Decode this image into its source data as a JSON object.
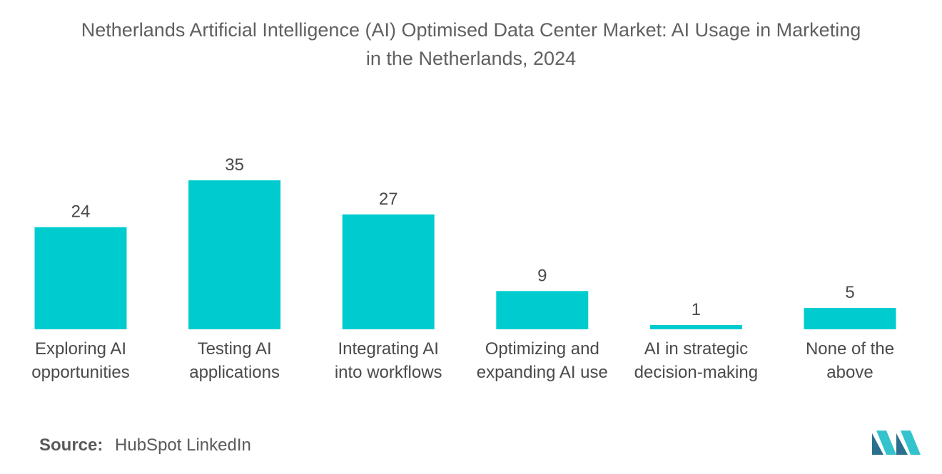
{
  "title_lines": [
    "Netherlands Artificial Intelligence (AI) Optimised Data Center Market: AI Usage in Marketing",
    "in the Netherlands, 2024"
  ],
  "chart_data": {
    "type": "bar",
    "title": "Netherlands Artificial Intelligence (AI) Optimised Data Center Market: AI Usage in Marketing in the Netherlands, 2024",
    "categories": [
      [
        "Exploring AI",
        "opportunities"
      ],
      [
        "Testing AI",
        "applications"
      ],
      [
        "Integrating AI",
        "into workflows"
      ],
      [
        "Optimizing and",
        "expanding AI use"
      ],
      [
        "AI in strategic",
        "decision-making"
      ],
      [
        "None of the",
        "above"
      ]
    ],
    "values": [
      24,
      35,
      27,
      9,
      1,
      5
    ],
    "xlabel": "",
    "ylabel": "",
    "ylim": [
      0,
      35
    ],
    "grid": false,
    "legend": "none",
    "bar_color": "#00cccf"
  },
  "source": {
    "label": "Source:",
    "text": "HubSpot LinkedIn"
  },
  "colors": {
    "bar": "#00cccf",
    "logo_dark": "#2b6f8e",
    "logo_light": "#34c3cc"
  }
}
